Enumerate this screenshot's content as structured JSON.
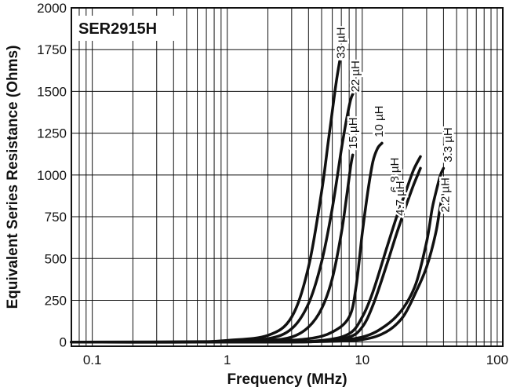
{
  "chart_data": {
    "type": "line",
    "title": "SER2915H",
    "xlabel": "Frequency (MHz)",
    "ylabel": "Equivalent Series Resistance (Ohms)",
    "x_scale": "log",
    "xlim": [
      0.07,
      110
    ],
    "ylim": [
      -25,
      2000
    ],
    "x_ticks": [
      0.1,
      1,
      10,
      100
    ],
    "x_tick_labels": [
      "0.1",
      "1",
      "10",
      "100"
    ],
    "y_ticks": [
      0,
      250,
      500,
      750,
      1000,
      1250,
      1500,
      1750,
      2000
    ],
    "y_tick_labels": [
      "0",
      "250",
      "500",
      "750",
      "1000",
      "1250",
      "1500",
      "1750",
      "2000"
    ],
    "grid": true,
    "colors": {
      "line": "#111111",
      "grid": "#111111",
      "background": "#ffffff"
    },
    "series": [
      {
        "name": "33 µH",
        "x": [
          0.07,
          0.5,
          1,
          2,
          3,
          4,
          5,
          5.6,
          6,
          6.4,
          6.8
        ],
        "y": [
          0,
          0,
          10,
          40,
          150,
          450,
          900,
          1200,
          1380,
          1550,
          1680
        ]
      },
      {
        "name": "22 µH",
        "x": [
          0.07,
          0.5,
          1,
          2,
          3,
          4,
          5,
          6,
          7,
          7.6,
          8.2,
          8.6
        ],
        "y": [
          0,
          0,
          5,
          20,
          80,
          230,
          480,
          800,
          1150,
          1320,
          1450,
          1490
        ]
      },
      {
        "name": "15 µH",
        "x": [
          0.07,
          1,
          2,
          3,
          4,
          5,
          6,
          7,
          7.6,
          8.2,
          8.5
        ],
        "y": [
          0,
          3,
          10,
          30,
          90,
          200,
          380,
          650,
          850,
          1050,
          1120
        ]
      },
      {
        "name": "10 µH",
        "x": [
          0.07,
          1,
          2,
          4,
          6,
          8,
          9,
          10,
          11,
          12,
          13,
          14
        ],
        "y": [
          0,
          0,
          5,
          20,
          60,
          150,
          330,
          650,
          900,
          1080,
          1160,
          1190
        ]
      },
      {
        "name": "6.8 µH",
        "x": [
          0.07,
          2,
          5,
          8,
          10,
          12,
          15,
          18,
          21,
          24,
          27
        ],
        "y": [
          0,
          0,
          10,
          50,
          150,
          300,
          550,
          750,
          900,
          1030,
          1110
        ]
      },
      {
        "name": "4.7 µH",
        "x": [
          0.07,
          2,
          5,
          8,
          10,
          12,
          15,
          18,
          21,
          24,
          27
        ],
        "y": [
          0,
          0,
          5,
          30,
          90,
          220,
          450,
          650,
          810,
          940,
          1040
        ]
      },
      {
        "name": "3.3 µH",
        "x": [
          0.07,
          2,
          5,
          10,
          15,
          20,
          25,
          30,
          33,
          36,
          38,
          40
        ],
        "y": [
          0,
          0,
          5,
          30,
          100,
          200,
          350,
          600,
          800,
          930,
          1000,
          1040
        ]
      },
      {
        "name": "2.2 µH",
        "x": [
          0.07,
          2,
          5,
          10,
          15,
          20,
          25,
          30,
          35,
          38,
          41,
          44
        ],
        "y": [
          0,
          0,
          3,
          15,
          60,
          150,
          300,
          450,
          650,
          820,
          930,
          980
        ]
      }
    ]
  }
}
